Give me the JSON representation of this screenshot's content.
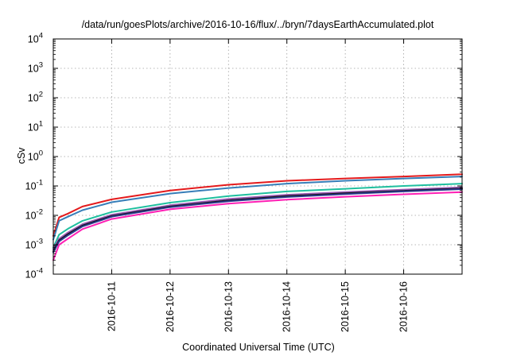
{
  "chart_data": {
    "type": "line",
    "title": "/data/run/goesPlots/archive/2016-10-16/flux/../bryn/7daysEarthAccumulated.plot",
    "xlabel": "Coordinated Universal Time (UTC)",
    "ylabel": "cSv",
    "yscale": "log",
    "ylim": [
      0.0001,
      10000
    ],
    "xlim": [
      0,
      7
    ],
    "x_unit": "days since 2016-10-10 00:00 UTC",
    "grid": true,
    "legend": "none",
    "x_ticks": [
      {
        "x": 1,
        "label": "2016-10-11"
      },
      {
        "x": 2,
        "label": "2016-10-12"
      },
      {
        "x": 3,
        "label": "2016-10-13"
      },
      {
        "x": 4,
        "label": "2016-10-14"
      },
      {
        "x": 5,
        "label": "2016-10-15"
      },
      {
        "x": 6,
        "label": "2016-10-16"
      }
    ],
    "y_ticks": [
      {
        "exp": "-4"
      },
      {
        "exp": "-3"
      },
      {
        "exp": "-2"
      },
      {
        "exp": "-1"
      },
      {
        "exp": "0"
      },
      {
        "exp": "1"
      },
      {
        "exp": "2"
      },
      {
        "exp": "3"
      },
      {
        "exp": "4"
      }
    ],
    "series": [
      {
        "color": "#e41a1c",
        "x": [
          0,
          0.1,
          0.25,
          0.5,
          1,
          2,
          3,
          4,
          5,
          6,
          7
        ],
        "y": [
          0.002,
          0.0085,
          0.0115,
          0.02,
          0.035,
          0.07,
          0.11,
          0.15,
          0.18,
          0.21,
          0.25
        ]
      },
      {
        "color": "#377eb8",
        "x": [
          0,
          0.1,
          0.25,
          0.5,
          1,
          2,
          3,
          4,
          5,
          6,
          7
        ],
        "y": [
          0.0015,
          0.0065,
          0.009,
          0.015,
          0.028,
          0.055,
          0.085,
          0.12,
          0.15,
          0.18,
          0.21
        ]
      },
      {
        "color": "#1fbf9f",
        "x": [
          0,
          0.1,
          0.25,
          0.5,
          1,
          2,
          3,
          4,
          5,
          6,
          7
        ],
        "y": [
          0.0008,
          0.0022,
          0.0035,
          0.0065,
          0.013,
          0.027,
          0.045,
          0.065,
          0.08,
          0.1,
          0.12
        ]
      },
      {
        "color": "#9b59b6",
        "x": [
          0,
          0.1,
          0.25,
          0.5,
          1,
          2,
          3,
          4,
          5,
          6,
          7
        ],
        "y": [
          0.0007,
          0.0016,
          0.0026,
          0.005,
          0.0105,
          0.022,
          0.036,
          0.05,
          0.062,
          0.075,
          0.09
        ]
      },
      {
        "color": "#111111",
        "x": [
          0,
          0.1,
          0.25,
          0.5,
          1,
          2,
          3,
          4,
          5,
          6,
          7
        ],
        "y": [
          0.0006,
          0.0014,
          0.0023,
          0.0045,
          0.0095,
          0.02,
          0.032,
          0.045,
          0.056,
          0.068,
          0.082
        ]
      },
      {
        "color": "#2b3a8c",
        "x": [
          0,
          0.1,
          0.25,
          0.5,
          1,
          2,
          3,
          4,
          5,
          6,
          7
        ],
        "y": [
          0.00055,
          0.0013,
          0.0021,
          0.0042,
          0.009,
          0.019,
          0.03,
          0.042,
          0.053,
          0.065,
          0.078
        ]
      },
      {
        "color": "#ff1fb4",
        "x": [
          0,
          0.1,
          0.25,
          0.5,
          1,
          2,
          3,
          4,
          5,
          6,
          7
        ],
        "y": [
          0.0003,
          0.001,
          0.0016,
          0.0034,
          0.0075,
          0.016,
          0.025,
          0.034,
          0.043,
          0.052,
          0.062
        ]
      }
    ]
  }
}
